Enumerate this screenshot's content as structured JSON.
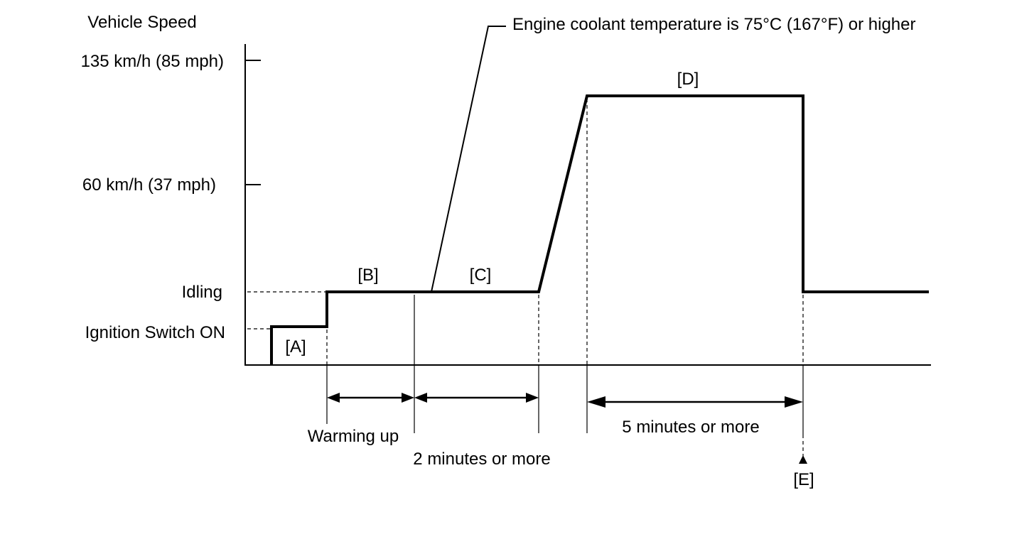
{
  "y_axis": {
    "title": "Vehicle Speed",
    "levels": [
      {
        "key": "speed135",
        "label": "135 km/h (85 mph)"
      },
      {
        "key": "speed60",
        "label": "60 km/h (37 mph)"
      },
      {
        "key": "idling",
        "label": "Idling"
      },
      {
        "key": "ignition",
        "label": "Ignition Switch ON"
      }
    ]
  },
  "phases": {
    "a": "[A]",
    "b": "[B]",
    "c": "[C]",
    "d": "[D]",
    "e": "[E]"
  },
  "annotations": {
    "coolant": "Engine coolant temperature is 75°C (167°F) or higher"
  },
  "intervals": {
    "warming_up": "Warming up",
    "two_minutes": "2 minutes or more",
    "five_minutes": "5 minutes or more"
  }
}
